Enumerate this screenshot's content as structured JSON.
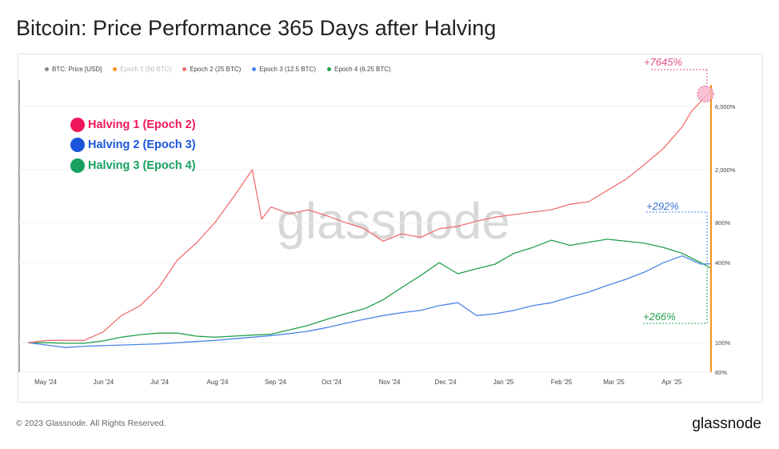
{
  "title": "Bitcoin: Price Performance 365 Days after Halving",
  "legend": [
    {
      "label": "BTC: Price [USD]",
      "color": "#888888",
      "muted": false
    },
    {
      "label": "Epoch 1 (50 BTC)",
      "color": "#f7931a",
      "muted": true
    },
    {
      "label": "Epoch 2 (25 BTC)",
      "color": "#f07070",
      "muted": false
    },
    {
      "label": "Epoch 3 (12.5 BTC)",
      "color": "#4a86e8",
      "muted": false
    },
    {
      "label": "Epoch 4 (6.25 BTC)",
      "color": "#22a04a",
      "muted": false
    }
  ],
  "halvings": [
    {
      "label": "Halving 1 (Epoch 2)",
      "color": "#f0185a"
    },
    {
      "label": "Halving 2 (Epoch 3)",
      "color": "#1a56db"
    },
    {
      "label": "Halving 3 (Epoch 4)",
      "color": "#17a060"
    }
  ],
  "annotations": {
    "epoch2": "+7645%",
    "epoch3": "+292%",
    "epoch4": "+266%"
  },
  "watermark": "glassnode",
  "footer": "© 2023 Glassnode. All Rights Reserved.",
  "brand": "glassnode",
  "chart_data": {
    "type": "line",
    "title": "Bitcoin: Price Performance 365 Days after Halving",
    "yscale": "log",
    "ylim": [
      60,
      10000
    ],
    "x_ticks": [
      "May '24",
      "Jun '24",
      "Jul '24",
      "Aug '24",
      "Sep '24",
      "Oct '24",
      "Nov '24",
      "Dec '24",
      "Jan '25",
      "Feb '25",
      "Mar '25",
      "Apr '25"
    ],
    "y_ticks": [
      "60%",
      "100%",
      "400%",
      "800%",
      "2,000%",
      "6,000%"
    ],
    "y_tick_values": [
      60,
      100,
      400,
      800,
      2000,
      6000
    ],
    "x_day_positions": [
      0,
      31,
      61,
      92,
      123,
      153,
      184,
      214,
      245,
      276,
      304,
      335
    ],
    "series": [
      {
        "name": "Epoch 2 (25 BTC)",
        "color": "#f07070",
        "x": [
          0,
          10,
          20,
          30,
          40,
          50,
          60,
          70,
          80,
          90,
          100,
          110,
          120,
          125,
          130,
          140,
          150,
          160,
          170,
          180,
          190,
          200,
          210,
          220,
          230,
          240,
          250,
          260,
          270,
          280,
          290,
          300,
          310,
          320,
          330,
          340,
          350,
          355,
          365
        ],
        "y": [
          100,
          104,
          104,
          104,
          120,
          160,
          190,
          260,
          420,
          560,
          800,
          1250,
          2000,
          850,
          1050,
          930,
          1000,
          900,
          800,
          720,
          580,
          660,
          620,
          720,
          750,
          820,
          880,
          920,
          960,
          1000,
          1100,
          1150,
          1400,
          1700,
          2200,
          2900,
          4200,
          5500,
          7745
        ]
      },
      {
        "name": "Epoch 3 (12.5 BTC)",
        "color": "#4a86e8",
        "x": [
          0,
          10,
          20,
          30,
          40,
          50,
          60,
          70,
          80,
          90,
          100,
          110,
          120,
          130,
          140,
          150,
          160,
          170,
          180,
          190,
          200,
          210,
          220,
          230,
          240,
          250,
          260,
          270,
          280,
          290,
          300,
          310,
          320,
          330,
          340,
          350,
          360,
          365
        ],
        "y": [
          100,
          96,
          92,
          94,
          95,
          96,
          97,
          98,
          100,
          102,
          104,
          107,
          110,
          113,
          117,
          122,
          130,
          140,
          150,
          160,
          168,
          175,
          190,
          200,
          160,
          165,
          175,
          190,
          200,
          220,
          240,
          270,
          300,
          340,
          400,
          450,
          390,
          392
        ]
      },
      {
        "name": "Epoch 4 (6.25 BTC)",
        "color": "#22a04a",
        "x": [
          0,
          10,
          20,
          30,
          40,
          50,
          60,
          70,
          80,
          90,
          100,
          110,
          120,
          130,
          140,
          150,
          160,
          170,
          180,
          190,
          200,
          210,
          220,
          230,
          240,
          250,
          260,
          270,
          280,
          290,
          300,
          310,
          320,
          330,
          340,
          350,
          360,
          365
        ],
        "y": [
          100,
          100,
          99,
          99,
          103,
          110,
          115,
          118,
          118,
          112,
          110,
          112,
          114,
          116,
          125,
          135,
          150,
          165,
          180,
          210,
          260,
          320,
          400,
          330,
          360,
          390,
          470,
          520,
          590,
          540,
          570,
          600,
          580,
          560,
          520,
          470,
          400,
          366
        ]
      }
    ]
  }
}
